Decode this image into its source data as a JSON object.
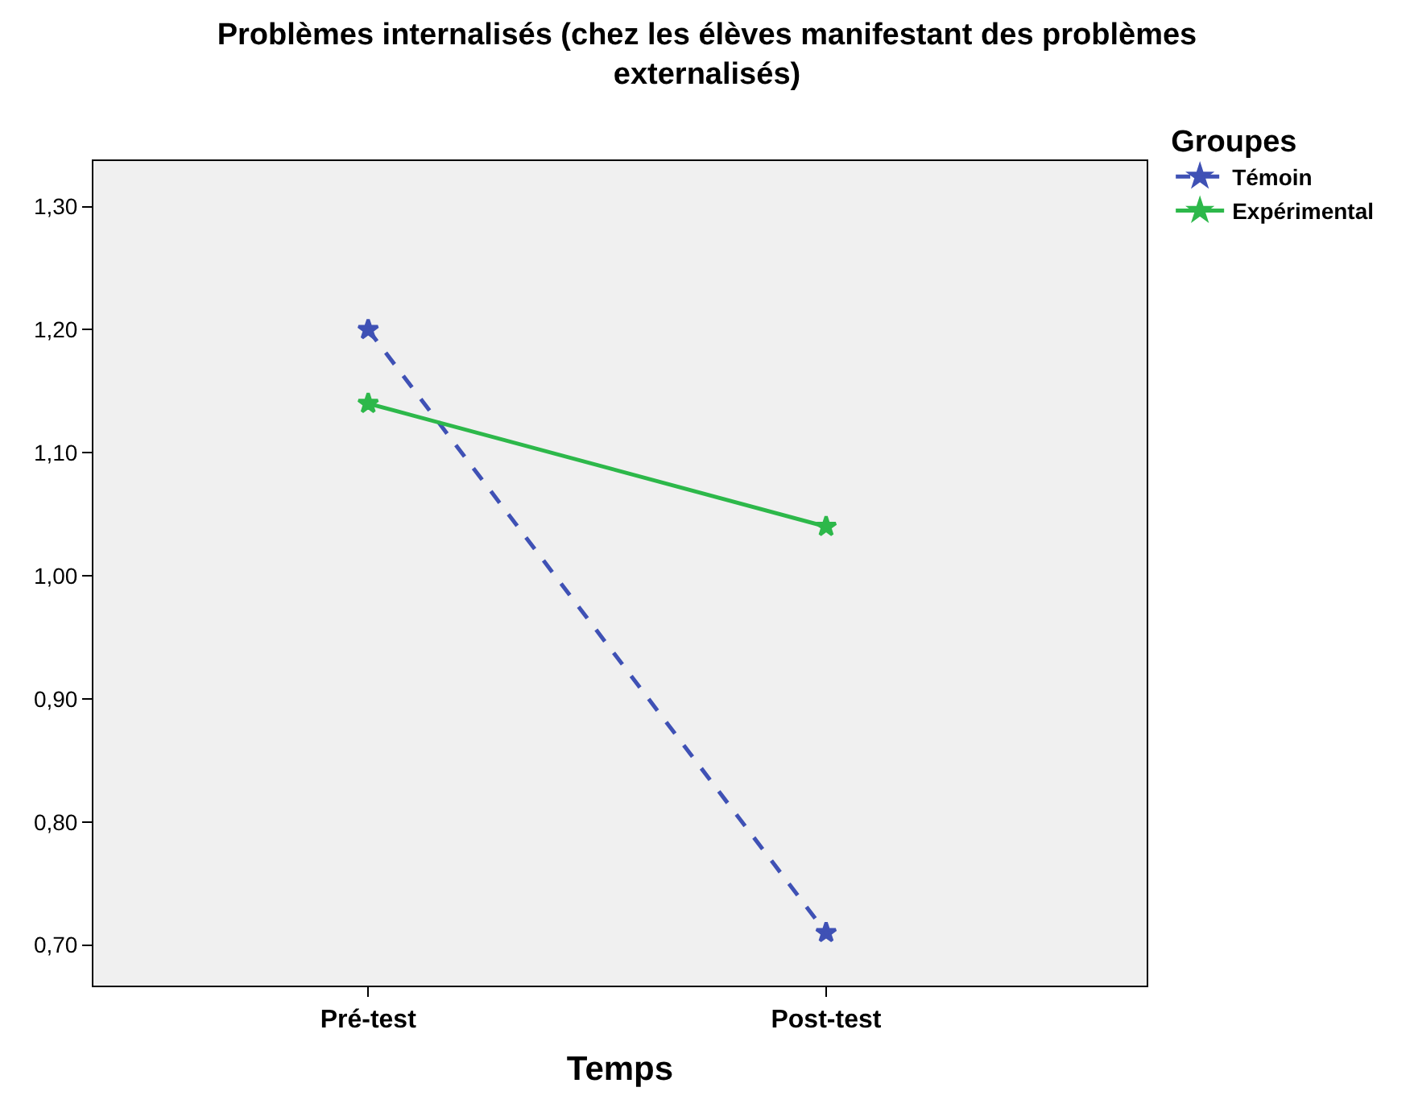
{
  "chart_data": {
    "type": "line",
    "title": "Problèmes internalisés (chez les élèves manifestant des problèmes externalisés)",
    "xlabel": "Temps",
    "legend_title": "Groupes",
    "categories": [
      "Pré-test",
      "Post-test"
    ],
    "series": [
      {
        "name": "Témoin",
        "color": "#3f51b5",
        "values": [
          1.2,
          0.71
        ],
        "line_style": "dashed"
      },
      {
        "name": "Expérimental",
        "color": "#2db84a",
        "values": [
          1.14,
          1.04
        ],
        "line_style": "solid"
      }
    ],
    "ylim": [
      0.667,
      1.337
    ],
    "yticks": [
      {
        "value": 0.7,
        "label": "0,70"
      },
      {
        "value": 0.8,
        "label": "0,80"
      },
      {
        "value": 0.9,
        "label": "0,90"
      },
      {
        "value": 1.0,
        "label": "1,00"
      },
      {
        "value": 1.1,
        "label": "1,10"
      },
      {
        "value": 1.2,
        "label": "1,20"
      },
      {
        "value": 1.3,
        "label": "1,30"
      }
    ],
    "grid": false,
    "legend": "top right",
    "marker": "star"
  }
}
